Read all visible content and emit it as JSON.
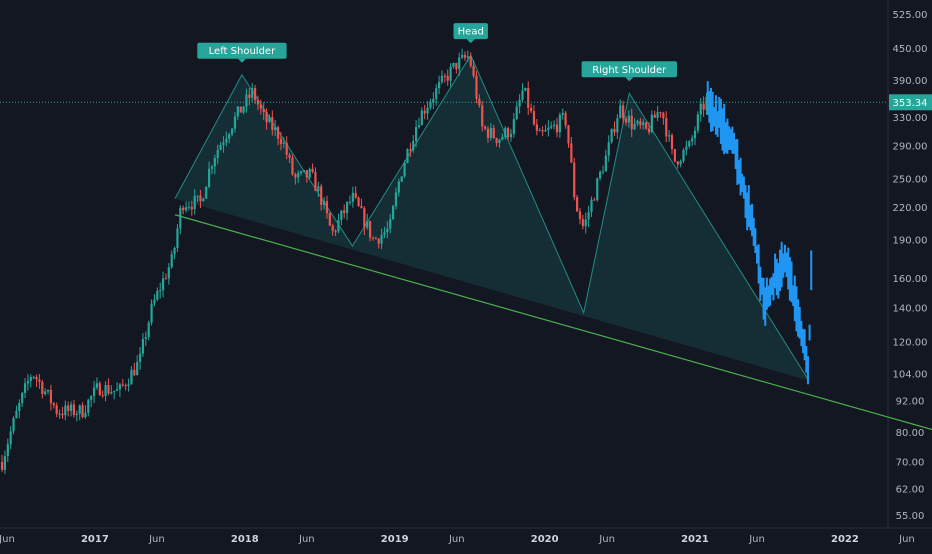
{
  "chart_data": {
    "type": "candlestick",
    "title": "",
    "y_axis": {
      "scale": "log",
      "position": "right",
      "ticks": [
        "525.00",
        "450.00",
        "390.00",
        "330.00",
        "290.00",
        "250.00",
        "220.00",
        "190.00",
        "160.00",
        "140.00",
        "120.00",
        "104.00",
        "92.00",
        "80.00",
        "70.00",
        "62.00",
        "55.00"
      ],
      "range": [
        52,
        560
      ]
    },
    "x_axis": {
      "range": [
        "2016-05-15",
        "2022-08-01"
      ],
      "ticks": [
        {
          "label": "Jun",
          "date": "2016-06-01"
        },
        {
          "label": "2017",
          "date": "2017-01-01",
          "major": true
        },
        {
          "label": "Jun",
          "date": "2017-06-01"
        },
        {
          "label": "2018",
          "date": "2018-01-01",
          "major": true
        },
        {
          "label": "Jun",
          "date": "2018-06-01"
        },
        {
          "label": "2019",
          "date": "2019-01-01",
          "major": true
        },
        {
          "label": "Jun",
          "date": "2019-06-01"
        },
        {
          "label": "2020",
          "date": "2020-01-01",
          "major": true
        },
        {
          "label": "Jun",
          "date": "2020-06-01"
        },
        {
          "label": "2021",
          "date": "2021-01-01",
          "major": true
        },
        {
          "label": "Jun",
          "date": "2021-06-01"
        },
        {
          "label": "2022",
          "date": "2022-01-01",
          "major": true
        },
        {
          "label": "Jun",
          "date": "2022-06-01"
        }
      ]
    },
    "current_price": {
      "label": "353.34",
      "value": 353.34,
      "color": "#26a69a"
    },
    "colors": {
      "up": "#26a69a",
      "down": "#ef5350",
      "projection": "#2196f3",
      "neckline": "#4caf50",
      "pattern_fill": "rgba(38,166,154,0.16)",
      "pattern_line": "#26a69a"
    },
    "price_path": [
      [
        "2016-05-20",
        70
      ],
      [
        "2016-08-01",
        105
      ],
      [
        "2016-10-01",
        88
      ],
      [
        "2016-12-01",
        88
      ],
      [
        "2017-01-10",
        98
      ],
      [
        "2017-03-01",
        96
      ],
      [
        "2017-04-20",
        110
      ],
      [
        "2017-05-20",
        140
      ],
      [
        "2017-07-10",
        175
      ],
      [
        "2017-08-01",
        225
      ],
      [
        "2017-09-15",
        225
      ],
      [
        "2017-10-15",
        275
      ],
      [
        "2017-12-15",
        335
      ],
      [
        "2018-01-20",
        370
      ],
      [
        "2018-02-15",
        330
      ],
      [
        "2018-04-01",
        300
      ],
      [
        "2018-05-01",
        250
      ],
      [
        "2018-06-10",
        255
      ],
      [
        "2018-07-01",
        235
      ],
      [
        "2018-08-01",
        195
      ],
      [
        "2018-09-20",
        230
      ],
      [
        "2018-11-10",
        190
      ],
      [
        "2018-12-20",
        200
      ],
      [
        "2019-01-15",
        255
      ],
      [
        "2019-03-01",
        330
      ],
      [
        "2019-04-15",
        375
      ],
      [
        "2019-06-01",
        420
      ],
      [
        "2019-07-01",
        435
      ],
      [
        "2019-08-01",
        315
      ],
      [
        "2019-09-10",
        300
      ],
      [
        "2019-10-15",
        315
      ],
      [
        "2019-11-10",
        375
      ],
      [
        "2019-12-15",
        300
      ],
      [
        "2020-02-01",
        320
      ],
      [
        "2020-02-20",
        330
      ],
      [
        "2020-03-15",
        225
      ],
      [
        "2020-04-05",
        200
      ],
      [
        "2020-05-01",
        235
      ],
      [
        "2020-06-01",
        280
      ],
      [
        "2020-07-01",
        345
      ],
      [
        "2020-08-01",
        320
      ],
      [
        "2020-09-05",
        310
      ],
      [
        "2020-10-10",
        345
      ],
      [
        "2020-11-10",
        270
      ],
      [
        "2020-12-20",
        290
      ],
      [
        "2021-01-15",
        340
      ],
      [
        "2021-02-01",
        360
      ]
    ],
    "projection_path": [
      [
        "2021-02-01",
        350
      ],
      [
        "2021-03-01",
        325
      ],
      [
        "2021-04-01",
        300
      ],
      [
        "2021-05-01",
        235
      ],
      [
        "2021-05-15",
        215
      ],
      [
        "2021-06-01",
        180
      ],
      [
        "2021-06-20",
        140
      ],
      [
        "2021-07-15",
        160
      ],
      [
        "2021-08-10",
        175
      ],
      [
        "2021-09-01",
        145
      ],
      [
        "2021-09-20",
        125
      ],
      [
        "2021-10-05",
        105
      ],
      [
        "2021-10-12",
        175
      ]
    ],
    "neckline": [
      [
        "2017-07-15",
        213
      ],
      [
        "2022-08-01",
        81
      ]
    ],
    "pattern_points": [
      [
        "2017-07-15",
        229
      ],
      [
        "2017-12-25",
        400
      ],
      [
        "2018-09-20",
        185
      ],
      [
        "2019-07-05",
        437
      ],
      [
        "2020-04-05",
        137
      ],
      [
        "2020-07-25",
        368
      ],
      [
        "2021-10-05",
        101
      ]
    ],
    "annotations": [
      {
        "text": "Left Shoulder",
        "date": "2017-12-25",
        "value": 400
      },
      {
        "text": "Head",
        "date": "2019-07-05",
        "value": 437
      },
      {
        "text": "Right Shoulder",
        "date": "2020-07-25",
        "value": 368
      }
    ]
  }
}
